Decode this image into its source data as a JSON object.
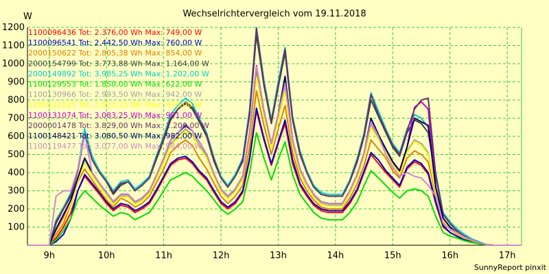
{
  "chart_data": {
    "type": "line",
    "title": "Wechselrichtervergleich vom 19.11.2018",
    "ylabel": "W",
    "xlabel": "",
    "credit": "SunnyReport pinxit",
    "ylim": [
      0,
      1200
    ],
    "xlim": [
      8.62,
      17.25
    ],
    "yticks": [
      100,
      200,
      300,
      400,
      500,
      600,
      700,
      800,
      900,
      1000,
      1100,
      1200
    ],
    "xticks": [
      {
        "x": 9,
        "label": "9h"
      },
      {
        "x": 10,
        "label": "10h"
      },
      {
        "x": 11,
        "label": "11h"
      },
      {
        "x": 12,
        "label": "12h"
      },
      {
        "x": 13,
        "label": "13h"
      },
      {
        "x": 14,
        "label": "14h"
      },
      {
        "x": 15,
        "label": "15h"
      },
      {
        "x": 16,
        "label": "16h"
      },
      {
        "x": 17,
        "label": "17h"
      }
    ],
    "grid": true,
    "legend_position": "top-left",
    "x": [
      8.62,
      8.88,
      9.0,
      9.12,
      9.25,
      9.38,
      9.5,
      9.62,
      9.75,
      9.88,
      10.0,
      10.12,
      10.25,
      10.38,
      10.5,
      10.62,
      10.75,
      10.88,
      11.0,
      11.12,
      11.25,
      11.38,
      11.5,
      11.62,
      11.75,
      11.88,
      12.0,
      12.12,
      12.25,
      12.38,
      12.5,
      12.62,
      12.75,
      12.88,
      13.0,
      13.12,
      13.25,
      13.38,
      13.5,
      13.62,
      13.75,
      13.88,
      14.0,
      14.12,
      14.25,
      14.38,
      14.5,
      14.62,
      14.75,
      14.88,
      15.0,
      15.12,
      15.25,
      15.38,
      15.5,
      15.62,
      15.75,
      15.88,
      16.0,
      16.12,
      16.25,
      16.38,
      16.5,
      16.62,
      16.75,
      16.88,
      17.0,
      17.12,
      17.25
    ],
    "series": [
      {
        "name": "1100096436 Tot: 2.376,00 Wh Max: 749,00 W",
        "color": "#ff0000",
        "values": [
          0,
          0,
          0,
          40,
          100,
          180,
          300,
          380,
          330,
          280,
          230,
          190,
          220,
          210,
          180,
          200,
          230,
          300,
          370,
          440,
          470,
          480,
          450,
          400,
          360,
          290,
          230,
          200,
          230,
          290,
          470,
          740,
          580,
          440,
          560,
          670,
          450,
          330,
          270,
          220,
          190,
          180,
          180,
          180,
          230,
          300,
          400,
          500,
          450,
          400,
          360,
          320,
          420,
          460,
          440,
          390,
          230,
          100,
          70,
          50,
          30,
          20,
          10,
          5,
          0,
          0,
          0,
          0,
          0
        ]
      },
      {
        "name": "1100096541 Tot: 2.442,50 Wh Max: 760,00 W",
        "color": "#0000cc",
        "values": [
          0,
          0,
          0,
          20,
          60,
          150,
          300,
          390,
          340,
          290,
          240,
          200,
          230,
          220,
          190,
          210,
          240,
          310,
          380,
          450,
          480,
          490,
          460,
          410,
          370,
          300,
          240,
          210,
          240,
          300,
          480,
          755,
          590,
          450,
          570,
          690,
          470,
          340,
          280,
          230,
          200,
          190,
          190,
          190,
          240,
          310,
          410,
          510,
          470,
          410,
          370,
          330,
          430,
          470,
          450,
          400,
          240,
          110,
          70,
          50,
          30,
          20,
          10,
          5,
          0,
          0,
          0,
          0,
          0
        ]
      },
      {
        "name": "2000150622 Tot: 2.805,38 Wh Max: 854,00 W",
        "color": "#e08000",
        "values": [
          0,
          0,
          0,
          60,
          120,
          230,
          350,
          420,
          360,
          300,
          250,
          210,
          260,
          240,
          210,
          230,
          270,
          350,
          420,
          510,
          550,
          580,
          550,
          480,
          420,
          340,
          270,
          230,
          270,
          330,
          540,
          850,
          660,
          500,
          640,
          770,
          510,
          370,
          300,
          250,
          210,
          200,
          200,
          200,
          260,
          340,
          440,
          580,
          530,
          480,
          410,
          370,
          480,
          520,
          500,
          460,
          280,
          130,
          90,
          60,
          40,
          25,
          10,
          5,
          0,
          0,
          0,
          0,
          0
        ]
      },
      {
        "name": "2000154799 Tot: 3.773,88 Wh Max: 1.164,00 W",
        "color": "#404040",
        "values": [
          0,
          0,
          0,
          120,
          200,
          270,
          410,
          620,
          470,
          400,
          350,
          280,
          330,
          350,
          300,
          330,
          370,
          480,
          580,
          690,
          750,
          780,
          750,
          680,
          600,
          460,
          370,
          320,
          380,
          460,
          720,
          1160,
          880,
          670,
          870,
          1060,
          690,
          500,
          400,
          320,
          280,
          270,
          270,
          270,
          350,
          460,
          600,
          800,
          710,
          620,
          540,
          490,
          620,
          690,
          670,
          620,
          380,
          170,
          120,
          80,
          50,
          30,
          15,
          5,
          0,
          0,
          0,
          0,
          0
        ]
      },
      {
        "name": "2000149892 Tot: 3.985,25 Wh Max: 1.202,00 W",
        "color": "#00cccc",
        "values": [
          0,
          0,
          0,
          140,
          210,
          290,
          420,
          640,
          490,
          410,
          360,
          300,
          350,
          360,
          310,
          340,
          380,
          500,
          600,
          720,
          770,
          810,
          780,
          700,
          620,
          480,
          380,
          330,
          390,
          480,
          750,
          1200,
          910,
          690,
          900,
          1090,
          710,
          520,
          410,
          330,
          290,
          280,
          280,
          280,
          360,
          480,
          620,
          840,
          740,
          640,
          560,
          510,
          640,
          720,
          700,
          650,
          400,
          180,
          130,
          90,
          60,
          35,
          20,
          5,
          0,
          0,
          0,
          0,
          0
        ]
      },
      {
        "name": "1100129553 Tot: 1.850,00 Wh Max: 622,00 W",
        "color": "#00dd00",
        "values": [
          0,
          0,
          0,
          30,
          80,
          150,
          250,
          300,
          260,
          220,
          190,
          160,
          180,
          170,
          140,
          160,
          180,
          240,
          300,
          360,
          380,
          400,
          380,
          340,
          300,
          250,
          200,
          170,
          200,
          240,
          400,
          620,
          480,
          360,
          470,
          570,
          390,
          280,
          230,
          180,
          150,
          140,
          140,
          140,
          180,
          240,
          330,
          410,
          370,
          330,
          290,
          260,
          300,
          310,
          300,
          270,
          160,
          70,
          50,
          40,
          25,
          15,
          8,
          3,
          0,
          0,
          0,
          0,
          0
        ]
      },
      {
        "name": "1100130966 Tot: 2.993,50 Wh Max: 942,00 W",
        "color": "#a0a0a0",
        "values": [
          0,
          0,
          0,
          80,
          150,
          240,
          360,
          460,
          390,
          330,
          280,
          230,
          270,
          270,
          230,
          250,
          290,
          380,
          460,
          560,
          600,
          640,
          610,
          550,
          490,
          380,
          300,
          260,
          300,
          370,
          600,
          940,
          720,
          550,
          700,
          860,
          560,
          410,
          330,
          270,
          230,
          220,
          220,
          220,
          290,
          380,
          500,
          660,
          590,
          520,
          450,
          400,
          520,
          580,
          560,
          510,
          300,
          140,
          100,
          70,
          45,
          30,
          15,
          5,
          0,
          0,
          0,
          0,
          0
        ]
      },
      {
        "name": "1100131025 Tot: 2.923,25 Wh Max: 930,00 W",
        "color": "#ffff00",
        "values": [
          0,
          0,
          0,
          75,
          145,
          235,
          355,
          455,
          385,
          325,
          275,
          225,
          265,
          265,
          225,
          245,
          285,
          375,
          455,
          550,
          590,
          630,
          600,
          540,
          480,
          375,
          295,
          255,
          295,
          365,
          590,
          930,
          710,
          540,
          690,
          850,
          550,
          400,
          325,
          265,
          225,
          215,
          215,
          215,
          285,
          375,
          490,
          650,
          580,
          510,
          440,
          395,
          510,
          570,
          550,
          500,
          295,
          135,
          95,
          65,
          42,
          28,
          14,
          5,
          0,
          0,
          0,
          0,
          0
        ]
      },
      {
        "name": "1100131074 Tot: 3.083,25 Wh Max: 991,00 W",
        "color": "#cc00cc",
        "values": [
          0,
          0,
          0,
          85,
          160,
          250,
          370,
          480,
          400,
          340,
          290,
          240,
          280,
          280,
          240,
          260,
          300,
          390,
          480,
          580,
          620,
          660,
          630,
          570,
          500,
          390,
          310,
          270,
          310,
          380,
          620,
          990,
          740,
          560,
          720,
          890,
          580,
          420,
          340,
          280,
          240,
          230,
          230,
          230,
          300,
          390,
          510,
          680,
          600,
          530,
          460,
          410,
          540,
          760,
          790,
          750,
          320,
          150,
          100,
          70,
          45,
          30,
          15,
          5,
          0,
          0,
          0,
          0,
          0
        ]
      },
      {
        "name": "2000001478 Tot: 3.829,00 Wh Max: 1.200,00 W",
        "color": "#663366",
        "values": [
          0,
          0,
          0,
          130,
          200,
          280,
          410,
          610,
          470,
          400,
          350,
          290,
          340,
          350,
          300,
          330,
          370,
          490,
          590,
          700,
          750,
          790,
          760,
          690,
          610,
          470,
          370,
          320,
          380,
          470,
          730,
          1195,
          890,
          680,
          880,
          1080,
          700,
          510,
          400,
          320,
          280,
          270,
          270,
          270,
          350,
          470,
          610,
          830,
          720,
          630,
          550,
          500,
          630,
          750,
          800,
          810,
          390,
          170,
          120,
          80,
          50,
          30,
          15,
          5,
          0,
          0,
          0,
          0,
          0
        ]
      },
      {
        "name": "1100148421 Tot: 3.080,50 Wh Max: 982,00 W",
        "color": "#000066",
        "values": [
          0,
          0,
          0,
          90,
          170,
          250,
          370,
          480,
          400,
          340,
          290,
          240,
          280,
          280,
          240,
          260,
          300,
          390,
          480,
          580,
          620,
          660,
          630,
          570,
          500,
          390,
          310,
          270,
          310,
          380,
          620,
          980,
          740,
          560,
          720,
          930,
          580,
          420,
          340,
          280,
          240,
          230,
          230,
          230,
          300,
          390,
          510,
          700,
          610,
          530,
          460,
          410,
          540,
          700,
          680,
          660,
          320,
          150,
          100,
          70,
          45,
          30,
          15,
          5,
          0,
          0,
          0,
          0,
          0
        ]
      },
      {
        "name": "1100119477 Tot: 3.077,00 Wh Max: 984,00 W",
        "color": "#cc88cc",
        "values": [
          0,
          0,
          0,
          270,
          300,
          300,
          420,
          610,
          400,
          340,
          290,
          240,
          280,
          280,
          240,
          260,
          300,
          390,
          480,
          580,
          620,
          670,
          630,
          570,
          500,
          390,
          310,
          270,
          310,
          380,
          620,
          984,
          740,
          560,
          720,
          890,
          580,
          420,
          340,
          280,
          240,
          230,
          230,
          230,
          300,
          390,
          510,
          680,
          600,
          500,
          430,
          380,
          400,
          380,
          370,
          330,
          270,
          120,
          90,
          70,
          45,
          30,
          15,
          5,
          0,
          0,
          0,
          0,
          0
        ]
      }
    ]
  }
}
